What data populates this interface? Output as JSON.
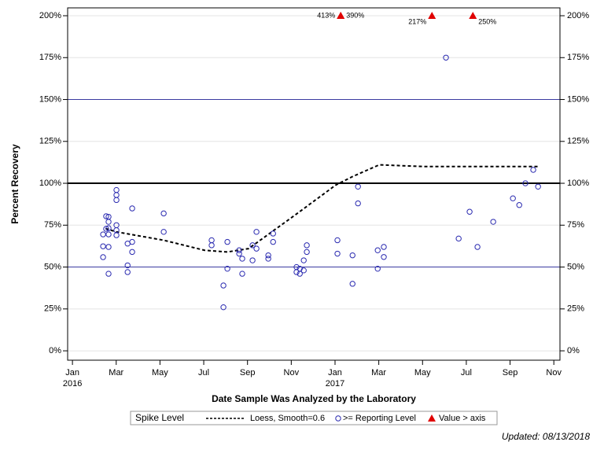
{
  "chart_data": {
    "type": "scatter",
    "xlabel": "Date Sample Was Analyzed by the Laboratory",
    "ylabel": "Percent Recovery",
    "legend_title": "Spike Level",
    "footer": "Updated: 08/13/2018",
    "xlim": [
      -0.22,
      22.28
    ],
    "xticks": [
      {
        "value": 0,
        "label": "Jan"
      },
      {
        "value": 2,
        "label": "Mar"
      },
      {
        "value": 4,
        "label": "May"
      },
      {
        "value": 6,
        "label": "Jul"
      },
      {
        "value": 8,
        "label": "Sep"
      },
      {
        "value": 10,
        "label": "Nov"
      },
      {
        "value": 12,
        "label": "Jan"
      },
      {
        "value": 14,
        "label": "Mar"
      },
      {
        "value": 16,
        "label": "May"
      },
      {
        "value": 18,
        "label": "Jul"
      },
      {
        "value": 20,
        "label": "Sep"
      },
      {
        "value": 22,
        "label": "Nov"
      }
    ],
    "xtick_years": [
      {
        "value": 0,
        "label": "2016"
      },
      {
        "value": 12,
        "label": "2017"
      }
    ],
    "ylim": [
      -5.6,
      204.7
    ],
    "yticks": [
      {
        "value": 0,
        "label": "0%"
      },
      {
        "value": 25,
        "label": "25%"
      },
      {
        "value": 50,
        "label": "50%"
      },
      {
        "value": 75,
        "label": "75%"
      },
      {
        "value": 100,
        "label": "100%"
      },
      {
        "value": 125,
        "label": "125%"
      },
      {
        "value": 150,
        "label": "150%"
      },
      {
        "value": 175,
        "label": "175%"
      },
      {
        "value": 200,
        "label": "200%"
      }
    ],
    "grid": true,
    "reference_lines": [
      {
        "value": 150,
        "color": "#3a3aa0"
      },
      {
        "value": 100,
        "color": "#000000"
      },
      {
        "value": 50,
        "color": "#3a3aa0"
      }
    ],
    "series": [
      {
        "name": "Loess, Smooth=0.6",
        "kind": "line",
        "color": "#000000",
        "x": [
          1.51,
          2.01,
          4.17,
          6.04,
          7.08,
          8.05,
          10.17,
          12.04,
          12.8,
          14.02,
          16.1,
          18.15,
          21.28
        ],
        "values": [
          73,
          71,
          66,
          60,
          59,
          61,
          81,
          99,
          104,
          111,
          110,
          110,
          110
        ]
      },
      {
        "name": ">= Reporting Level",
        "kind": "circle",
        "color": "#2a2ab0",
        "x": [
          1.4,
          1.4,
          1.4,
          1.54,
          1.54,
          1.65,
          1.65,
          1.65,
          1.65,
          1.65,
          1.65,
          2.01,
          2.01,
          2.01,
          2.01,
          2.01,
          2.01,
          2.52,
          2.52,
          2.52,
          2.73,
          2.73,
          2.73,
          4.17,
          4.17,
          6.36,
          6.36,
          6.9,
          6.9,
          7.08,
          7.08,
          7.62,
          7.62,
          7.76,
          7.76,
          8.23,
          8.23,
          8.41,
          8.41,
          8.95,
          8.95,
          9.17,
          9.17,
          10.24,
          10.24,
          10.39,
          10.39,
          10.57,
          10.57,
          10.71,
          10.71,
          12.11,
          12.11,
          12.8,
          12.8,
          13.05,
          13.05,
          13.95,
          13.95,
          14.23,
          14.23,
          17.07,
          17.65,
          18.15,
          18.51,
          19.23,
          20.13,
          20.42,
          20.7,
          21.06,
          21.28
        ],
        "values": [
          55.9,
          62.4,
          69.5,
          72.8,
          80.3,
          80,
          77,
          73.2,
          69.5,
          62,
          46,
          96,
          93,
          90,
          75,
          72,
          69,
          64,
          51,
          47,
          85,
          65,
          59,
          82,
          71,
          66,
          63,
          39,
          26,
          65,
          49,
          60,
          58,
          55,
          46,
          54,
          63,
          71,
          61,
          57,
          55,
          70,
          65,
          50,
          47,
          49,
          46,
          54,
          48,
          63,
          59,
          66,
          58,
          57,
          40,
          98,
          88,
          60,
          49,
          62,
          56,
          175,
          67,
          83,
          62,
          77,
          91,
          87,
          100,
          108,
          98
        ]
      },
      {
        "name": "Value > axis",
        "kind": "triangle",
        "color": "#e00000",
        "x": [
          12.26,
          12.26,
          16.43,
          18.3
        ],
        "values": [
          413,
          390,
          217,
          250
        ],
        "value_labels": [
          "413%",
          "390%",
          "217%",
          "250%"
        ]
      }
    ]
  }
}
